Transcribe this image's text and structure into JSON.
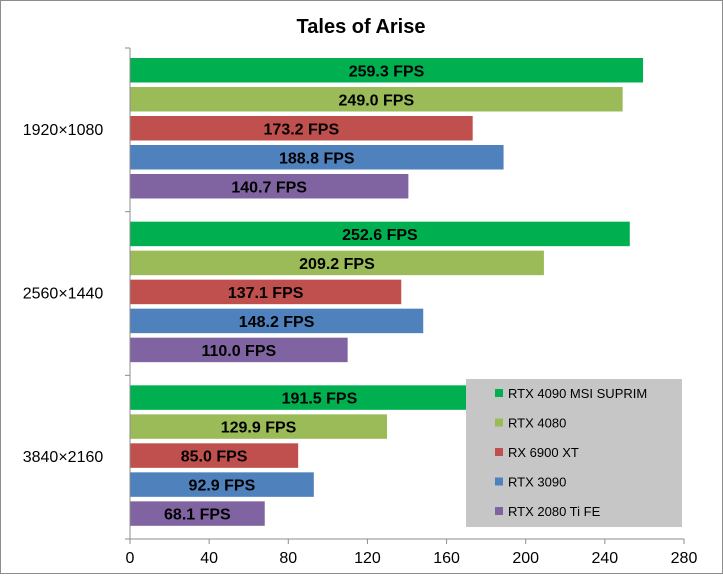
{
  "chart_data": {
    "type": "bar",
    "orientation": "horizontal",
    "title": "Tales of Arise",
    "xlabel": "",
    "ylabel": "",
    "xlim": [
      0,
      280
    ],
    "xticks": [
      "0",
      "40",
      "80",
      "120",
      "160",
      "200",
      "240",
      "280"
    ],
    "grid": false,
    "legend_position": "bottom-right",
    "categories": [
      "1920×1080",
      "2560×1440",
      "3840×2160"
    ],
    "series": [
      {
        "name": "RTX 4090 MSI SUPRIM",
        "color": "#00b050",
        "values": [
          259.3,
          252.6,
          191.5
        ],
        "labels": [
          "259.3 FPS",
          "252.6 FPS",
          "191.5 FPS"
        ]
      },
      {
        "name": "RTX 4080",
        "color": "#9bbb59",
        "values": [
          249.0,
          209.2,
          129.9
        ],
        "labels": [
          "249.0 FPS",
          "209.2 FPS",
          "129.9 FPS"
        ]
      },
      {
        "name": "RX 6900 XT",
        "color": "#c0504d",
        "values": [
          173.2,
          137.1,
          85.0
        ],
        "labels": [
          "173.2 FPS",
          "137.1 FPS",
          "85.0 FPS"
        ]
      },
      {
        "name": "RTX 3090",
        "color": "#4f81bd",
        "values": [
          188.8,
          148.2,
          92.9
        ],
        "labels": [
          "188.8 FPS",
          "148.2 FPS",
          "92.9 FPS"
        ]
      },
      {
        "name": "RTX 2080 Ti FE",
        "color": "#8064a2",
        "values": [
          140.7,
          110.0,
          68.1
        ],
        "labels": [
          "140.7 FPS",
          "110.0 FPS",
          "68.1 FPS"
        ]
      }
    ]
  }
}
